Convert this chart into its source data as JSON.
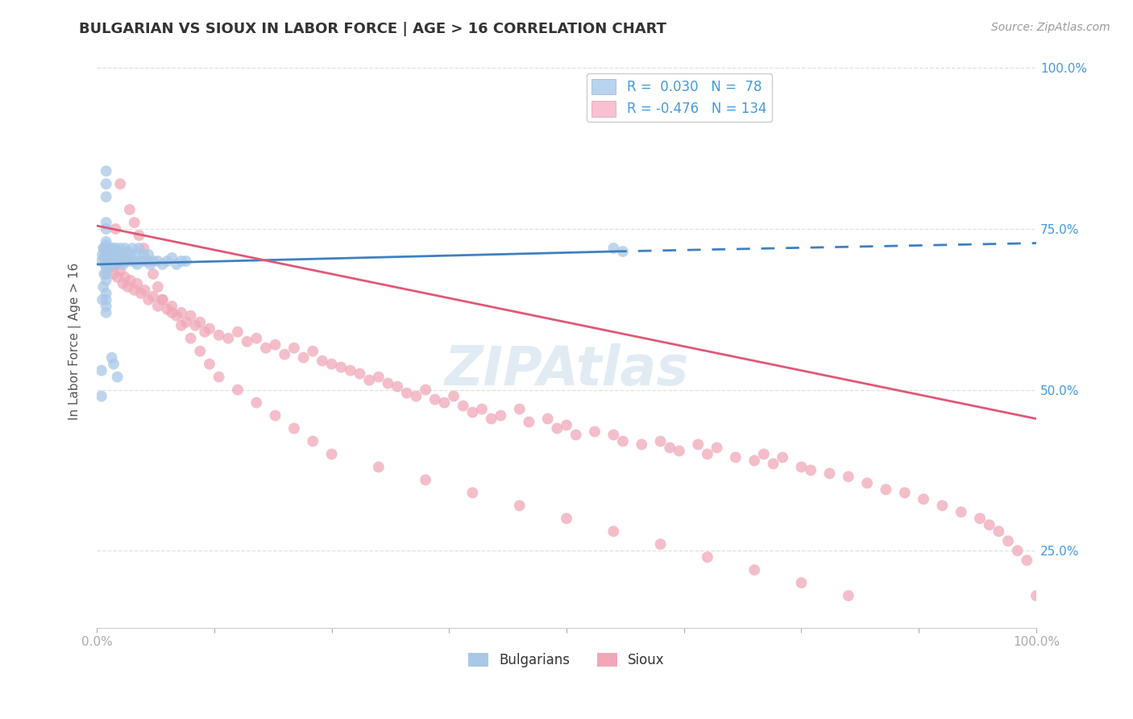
{
  "title": "BULGARIAN VS SIOUX IN LABOR FORCE | AGE > 16 CORRELATION CHART",
  "source_text": "Source: ZipAtlas.com",
  "ylabel": "In Labor Force | Age > 16",
  "xlim": [
    0.0,
    1.0
  ],
  "ylim": [
    0.13,
    1.02
  ],
  "yticks": [
    0.25,
    0.5,
    0.75,
    1.0
  ],
  "ytick_labels_right": [
    "25.0%",
    "50.0%",
    "75.0%",
    "100.0%"
  ],
  "xticks": [
    0.0,
    0.125,
    0.25,
    0.375,
    0.5,
    0.625,
    0.75,
    0.875,
    1.0
  ],
  "xtick_labels": [
    "0.0%",
    "",
    "",
    "",
    "",
    "",
    "",
    "",
    "100.0%"
  ],
  "blue_R": 0.03,
  "blue_N": 78,
  "pink_R": -0.476,
  "pink_N": 134,
  "blue_color": "#a8c8e8",
  "pink_color": "#f0a8b8",
  "blue_line_color": "#4080c0",
  "pink_line_color": "#e05878",
  "legend_label_blue": "Bulgarians",
  "legend_label_pink": "Sioux",
  "watermark": "ZIPAtlas",
  "blue_trend_x0": 0.0,
  "blue_trend_y0": 0.695,
  "blue_trend_x1": 0.55,
  "blue_trend_y1": 0.715,
  "blue_trend_dash_x0": 0.55,
  "blue_trend_dash_y0": 0.715,
  "blue_trend_dash_x1": 1.0,
  "blue_trend_dash_y1": 0.728,
  "pink_trend_x0": 0.0,
  "pink_trend_y0": 0.755,
  "pink_trend_x1": 1.0,
  "pink_trend_y1": 0.455,
  "background_color": "#ffffff",
  "grid_color": "#dddddd",
  "title_color": "#333333",
  "axis_label_color": "#555555",
  "tick_color": "#aaaaaa",
  "right_tick_color": "#4499dd",
  "blue_scatter_x": [
    0.005,
    0.006,
    0.007,
    0.008,
    0.009,
    0.01,
    0.01,
    0.01,
    0.01,
    0.01,
    0.011,
    0.011,
    0.012,
    0.012,
    0.013,
    0.014,
    0.015,
    0.015,
    0.016,
    0.016,
    0.017,
    0.018,
    0.018,
    0.019,
    0.02,
    0.02,
    0.021,
    0.022,
    0.023,
    0.025,
    0.025,
    0.027,
    0.028,
    0.03,
    0.032,
    0.033,
    0.035,
    0.036,
    0.038,
    0.04,
    0.042,
    0.043,
    0.045,
    0.048,
    0.05,
    0.052,
    0.055,
    0.057,
    0.06,
    0.065,
    0.07,
    0.075,
    0.08,
    0.085,
    0.09,
    0.095,
    0.01,
    0.01,
    0.01,
    0.01,
    0.01,
    0.01,
    0.01,
    0.01,
    0.01,
    0.01,
    0.01,
    0.01,
    0.008,
    0.007,
    0.006,
    0.005,
    0.005,
    0.55,
    0.56,
    0.016,
    0.018,
    0.022
  ],
  "blue_scatter_y": [
    0.7,
    0.71,
    0.72,
    0.705,
    0.695,
    0.715,
    0.725,
    0.7,
    0.69,
    0.71,
    0.72,
    0.7,
    0.695,
    0.705,
    0.71,
    0.715,
    0.72,
    0.7,
    0.71,
    0.695,
    0.72,
    0.71,
    0.7,
    0.715,
    0.72,
    0.695,
    0.71,
    0.7,
    0.715,
    0.72,
    0.7,
    0.71,
    0.695,
    0.72,
    0.705,
    0.715,
    0.7,
    0.71,
    0.72,
    0.7,
    0.71,
    0.695,
    0.72,
    0.7,
    0.71,
    0.7,
    0.71,
    0.695,
    0.7,
    0.7,
    0.695,
    0.7,
    0.705,
    0.695,
    0.7,
    0.7,
    0.76,
    0.8,
    0.82,
    0.84,
    0.75,
    0.73,
    0.68,
    0.67,
    0.65,
    0.64,
    0.63,
    0.62,
    0.68,
    0.66,
    0.64,
    0.49,
    0.53,
    0.72,
    0.715,
    0.55,
    0.54,
    0.52
  ],
  "pink_scatter_x": [
    0.008,
    0.01,
    0.012,
    0.014,
    0.016,
    0.018,
    0.02,
    0.022,
    0.025,
    0.028,
    0.03,
    0.033,
    0.036,
    0.04,
    0.043,
    0.047,
    0.051,
    0.055,
    0.06,
    0.065,
    0.07,
    0.075,
    0.08,
    0.085,
    0.09,
    0.095,
    0.1,
    0.105,
    0.11,
    0.115,
    0.12,
    0.13,
    0.14,
    0.15,
    0.16,
    0.17,
    0.18,
    0.19,
    0.2,
    0.21,
    0.22,
    0.23,
    0.24,
    0.25,
    0.26,
    0.27,
    0.28,
    0.29,
    0.3,
    0.31,
    0.32,
    0.33,
    0.34,
    0.35,
    0.36,
    0.37,
    0.38,
    0.39,
    0.4,
    0.41,
    0.42,
    0.43,
    0.45,
    0.46,
    0.48,
    0.49,
    0.5,
    0.51,
    0.53,
    0.55,
    0.56,
    0.58,
    0.6,
    0.61,
    0.62,
    0.64,
    0.65,
    0.66,
    0.68,
    0.7,
    0.71,
    0.72,
    0.73,
    0.75,
    0.76,
    0.78,
    0.8,
    0.82,
    0.84,
    0.86,
    0.88,
    0.9,
    0.92,
    0.94,
    0.95,
    0.96,
    0.97,
    0.98,
    0.99,
    1.0,
    0.02,
    0.025,
    0.03,
    0.035,
    0.04,
    0.045,
    0.05,
    0.055,
    0.06,
    0.065,
    0.07,
    0.08,
    0.09,
    0.1,
    0.11,
    0.12,
    0.13,
    0.15,
    0.17,
    0.19,
    0.21,
    0.23,
    0.25,
    0.3,
    0.35,
    0.4,
    0.45,
    0.5,
    0.55,
    0.6,
    0.65,
    0.7,
    0.75,
    0.8
  ],
  "pink_scatter_y": [
    0.72,
    0.7,
    0.71,
    0.69,
    0.7,
    0.68,
    0.695,
    0.675,
    0.685,
    0.665,
    0.675,
    0.66,
    0.67,
    0.655,
    0.665,
    0.65,
    0.655,
    0.64,
    0.645,
    0.63,
    0.64,
    0.625,
    0.63,
    0.615,
    0.62,
    0.605,
    0.615,
    0.6,
    0.605,
    0.59,
    0.595,
    0.585,
    0.58,
    0.59,
    0.575,
    0.58,
    0.565,
    0.57,
    0.555,
    0.565,
    0.55,
    0.56,
    0.545,
    0.54,
    0.535,
    0.53,
    0.525,
    0.515,
    0.52,
    0.51,
    0.505,
    0.495,
    0.49,
    0.5,
    0.485,
    0.48,
    0.49,
    0.475,
    0.465,
    0.47,
    0.455,
    0.46,
    0.47,
    0.45,
    0.455,
    0.44,
    0.445,
    0.43,
    0.435,
    0.43,
    0.42,
    0.415,
    0.42,
    0.41,
    0.405,
    0.415,
    0.4,
    0.41,
    0.395,
    0.39,
    0.4,
    0.385,
    0.395,
    0.38,
    0.375,
    0.37,
    0.365,
    0.355,
    0.345,
    0.34,
    0.33,
    0.32,
    0.31,
    0.3,
    0.29,
    0.28,
    0.265,
    0.25,
    0.235,
    0.18,
    0.75,
    0.82,
    0.7,
    0.78,
    0.76,
    0.74,
    0.72,
    0.7,
    0.68,
    0.66,
    0.64,
    0.62,
    0.6,
    0.58,
    0.56,
    0.54,
    0.52,
    0.5,
    0.48,
    0.46,
    0.44,
    0.42,
    0.4,
    0.38,
    0.36,
    0.34,
    0.32,
    0.3,
    0.28,
    0.26,
    0.24,
    0.22,
    0.2,
    0.18
  ]
}
